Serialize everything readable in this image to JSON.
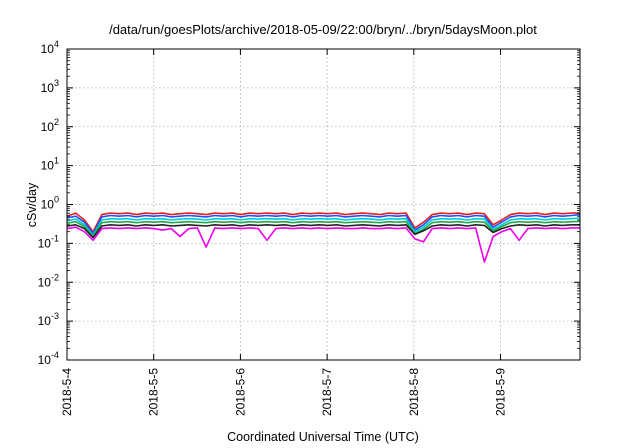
{
  "chart_data": {
    "type": "line",
    "title": "/data/run/goesPlots/archive/2018-05-09/22:00/bryn/../bryn/5daysMoon.plot",
    "xlabel": "Coordinated Universal Time (UTC)",
    "ylabel": "cSv/day",
    "yscale": "log",
    "grid": true,
    "xlim": [
      "2018-05-04",
      "2018-05-09T22:00"
    ],
    "ylim": [
      0.0001,
      10000
    ],
    "x_ticks": [
      "2018-5-4",
      "2018-5-5",
      "2018-5-6",
      "2018-5-7",
      "2018-5-8",
      "2018-5-9"
    ],
    "y_ticks": [
      {
        "base": "10",
        "exp": "-4",
        "value": 0.0001
      },
      {
        "base": "10",
        "exp": "-3",
        "value": 0.001
      },
      {
        "base": "10",
        "exp": "-2",
        "value": 0.01
      },
      {
        "base": "10",
        "exp": "-1",
        "value": 0.1
      },
      {
        "base": "10",
        "exp": "0",
        "value": 1
      },
      {
        "base": "10",
        "exp": "1",
        "value": 10
      },
      {
        "base": "10",
        "exp": "2",
        "value": 100
      },
      {
        "base": "10",
        "exp": "3",
        "value": 1000
      },
      {
        "base": "10",
        "exp": "4",
        "value": 10000
      }
    ],
    "series": [
      {
        "color": "#e51e1e",
        "values": [
          0.5,
          0.6,
          0.4,
          0.2,
          0.55,
          0.6,
          0.58,
          0.6,
          0.55,
          0.6,
          0.58,
          0.6,
          0.55,
          0.58,
          0.6,
          0.58,
          0.55,
          0.6,
          0.58,
          0.6,
          0.55,
          0.6,
          0.58,
          0.6,
          0.58,
          0.6,
          0.55,
          0.6,
          0.58,
          0.6,
          0.58,
          0.6,
          0.55,
          0.58,
          0.6,
          0.58,
          0.55,
          0.6,
          0.58,
          0.6,
          0.25,
          0.35,
          0.55,
          0.6,
          0.58,
          0.6,
          0.55,
          0.6,
          0.58,
          0.3,
          0.4,
          0.55,
          0.6,
          0.58,
          0.6,
          0.55,
          0.6,
          0.58,
          0.6,
          0.6
        ]
      },
      {
        "color": "#1e50ff",
        "values": [
          0.45,
          0.5,
          0.35,
          0.18,
          0.48,
          0.52,
          0.5,
          0.52,
          0.48,
          0.52,
          0.5,
          0.52,
          0.48,
          0.5,
          0.52,
          0.5,
          0.48,
          0.52,
          0.5,
          0.52,
          0.48,
          0.52,
          0.5,
          0.52,
          0.5,
          0.52,
          0.48,
          0.52,
          0.5,
          0.52,
          0.5,
          0.52,
          0.48,
          0.5,
          0.52,
          0.5,
          0.48,
          0.52,
          0.5,
          0.52,
          0.22,
          0.3,
          0.48,
          0.52,
          0.5,
          0.52,
          0.48,
          0.52,
          0.5,
          0.26,
          0.35,
          0.48,
          0.52,
          0.5,
          0.52,
          0.48,
          0.52,
          0.5,
          0.52,
          0.55
        ]
      },
      {
        "color": "#00ccdd",
        "values": [
          0.38,
          0.42,
          0.3,
          0.16,
          0.4,
          0.43,
          0.42,
          0.43,
          0.4,
          0.43,
          0.42,
          0.43,
          0.4,
          0.42,
          0.43,
          0.42,
          0.4,
          0.43,
          0.42,
          0.43,
          0.4,
          0.43,
          0.42,
          0.43,
          0.42,
          0.43,
          0.4,
          0.43,
          0.42,
          0.43,
          0.42,
          0.43,
          0.4,
          0.42,
          0.43,
          0.42,
          0.4,
          0.43,
          0.42,
          0.43,
          0.2,
          0.26,
          0.4,
          0.43,
          0.42,
          0.43,
          0.4,
          0.43,
          0.42,
          0.23,
          0.3,
          0.4,
          0.43,
          0.42,
          0.43,
          0.4,
          0.43,
          0.42,
          0.43,
          0.45
        ]
      },
      {
        "color": "#22aa44",
        "values": [
          0.33,
          0.36,
          0.27,
          0.15,
          0.34,
          0.36,
          0.35,
          0.36,
          0.34,
          0.36,
          0.35,
          0.36,
          0.34,
          0.35,
          0.36,
          0.35,
          0.34,
          0.36,
          0.35,
          0.36,
          0.34,
          0.36,
          0.35,
          0.36,
          0.35,
          0.36,
          0.34,
          0.36,
          0.35,
          0.36,
          0.35,
          0.36,
          0.34,
          0.35,
          0.36,
          0.35,
          0.34,
          0.36,
          0.35,
          0.36,
          0.18,
          0.23,
          0.34,
          0.36,
          0.35,
          0.36,
          0.34,
          0.36,
          0.35,
          0.21,
          0.27,
          0.34,
          0.36,
          0.35,
          0.36,
          0.34,
          0.36,
          0.35,
          0.36,
          0.37
        ]
      },
      {
        "color": "#222222",
        "values": [
          0.28,
          0.3,
          0.24,
          0.14,
          0.28,
          0.3,
          0.29,
          0.3,
          0.28,
          0.3,
          0.29,
          0.3,
          0.28,
          0.29,
          0.3,
          0.29,
          0.28,
          0.3,
          0.29,
          0.3,
          0.28,
          0.3,
          0.29,
          0.3,
          0.29,
          0.3,
          0.28,
          0.3,
          0.29,
          0.3,
          0.29,
          0.3,
          0.28,
          0.29,
          0.3,
          0.29,
          0.28,
          0.3,
          0.29,
          0.3,
          0.17,
          0.21,
          0.28,
          0.3,
          0.29,
          0.3,
          0.28,
          0.3,
          0.29,
          0.19,
          0.24,
          0.28,
          0.3,
          0.29,
          0.3,
          0.28,
          0.3,
          0.29,
          0.3,
          0.3
        ]
      },
      {
        "color": "#ee00ee",
        "values": [
          0.24,
          0.26,
          0.2,
          0.12,
          0.24,
          0.25,
          0.24,
          0.25,
          0.24,
          0.25,
          0.24,
          0.22,
          0.24,
          0.15,
          0.24,
          0.25,
          0.08,
          0.25,
          0.24,
          0.25,
          0.24,
          0.25,
          0.24,
          0.12,
          0.24,
          0.25,
          0.24,
          0.25,
          0.24,
          0.25,
          0.24,
          0.25,
          0.24,
          0.24,
          0.25,
          0.24,
          0.24,
          0.25,
          0.24,
          0.25,
          0.13,
          0.11,
          0.24,
          0.25,
          0.24,
          0.25,
          0.24,
          0.25,
          0.033,
          0.15,
          0.2,
          0.24,
          0.12,
          0.24,
          0.25,
          0.24,
          0.25,
          0.24,
          0.25,
          0.25
        ]
      }
    ]
  }
}
